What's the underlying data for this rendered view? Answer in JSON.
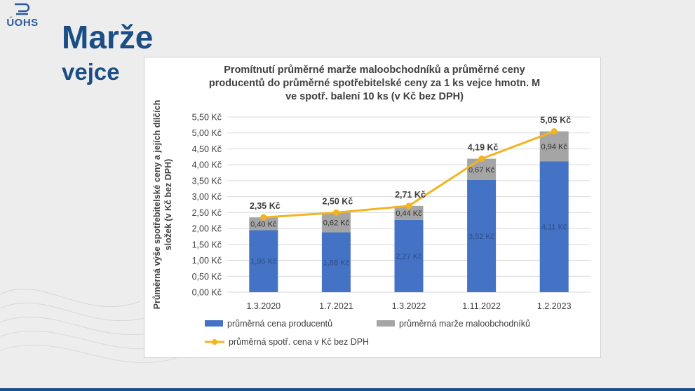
{
  "brand": {
    "logo_text": "ÚOHS"
  },
  "page": {
    "title": "Marže",
    "subtitle": "vejce"
  },
  "colors": {
    "producer": "#4472c4",
    "margin": "#a5a5a5",
    "consumer_line": "#f2b420",
    "title_blue": "#1b4e86"
  },
  "chart_data": {
    "type": "bar",
    "stacked": true,
    "title_lines": [
      "Promítnutí průměrné marže maloobchodníků  a průměrné ceny",
      "producentů do průměrné spotřebitelské ceny za 1 ks vejce hmotn. M",
      "ve spotř. balení 10 ks (v Kč bez DPH)"
    ],
    "ylabel_lines": [
      "Průměrná výše spotřebitelské ceny  a jejích dílčích",
      "složek (v Kč bez DPH)"
    ],
    "categories": [
      "1.3.2020",
      "1.7.2021",
      "1.3.2022",
      "1.11.2022",
      "1.2.2023"
    ],
    "ylim": [
      0,
      5.5
    ],
    "ytick_step": 0.5,
    "ytick_labels": [
      "0,00 Kč",
      "0,50 Kč",
      "1,00 Kč",
      "1,50 Kč",
      "2,00 Kč",
      "2,50 Kč",
      "3,00 Kč",
      "3,50 Kč",
      "4,00 Kč",
      "4,50 Kč",
      "5,00 Kč",
      "5,50 Kč"
    ],
    "grid": true,
    "legend_position": "bottom",
    "series": [
      {
        "name": "průměrná cena producentů",
        "kind": "bar",
        "values": [
          1.95,
          1.88,
          2.27,
          3.52,
          4.11
        ],
        "labels": [
          "1,95 Kč",
          "1,88 Kč",
          "2,27 Kč",
          "3,52 Kč",
          "4,11 Kč"
        ]
      },
      {
        "name": "průměrná marže maloobchodníků",
        "kind": "bar",
        "values": [
          0.4,
          0.62,
          0.44,
          0.67,
          0.94
        ],
        "labels": [
          "0,40 Kč",
          "0,62 Kč",
          "0,44 Kč",
          "0,67 Kč",
          "0,94 Kč"
        ]
      },
      {
        "name": "průměrná spotř. cena v Kč bez DPH",
        "kind": "line",
        "values": [
          2.35,
          2.5,
          2.71,
          4.19,
          5.05
        ],
        "labels": [
          "2,35 Kč",
          "2,50 Kč",
          "2,71 Kč",
          "4,19 Kč",
          "5,05 Kč"
        ]
      }
    ]
  }
}
